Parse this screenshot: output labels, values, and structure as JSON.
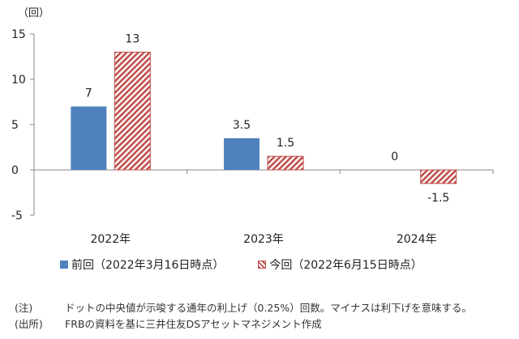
{
  "chart_data": {
    "type": "bar",
    "unit_label": "（回）",
    "categories": [
      "2022年",
      "2023年",
      "2024年"
    ],
    "series": [
      {
        "name": "前回（2022年3月16日時点）",
        "values": [
          7,
          3.5,
          0
        ],
        "value_labels": [
          "7",
          "3.5",
          "0"
        ],
        "color": "#4f81bd",
        "style": "solid"
      },
      {
        "name": "今回（2022年6月15日時点）",
        "values": [
          13,
          1.5,
          -1.5
        ],
        "value_labels": [
          "13",
          "1.5",
          "-1.5"
        ],
        "color": "#c0504d",
        "style": "hatched"
      }
    ],
    "ylim": [
      -5,
      15
    ],
    "yticks": [
      15,
      10,
      5,
      0,
      -5
    ],
    "ytick_labels": [
      "15",
      "10",
      "5",
      "0",
      "-5"
    ],
    "legend_position": "bottom",
    "grid": false
  },
  "notes": [
    {
      "label": "(注)",
      "text": "ドットの中央値が示唆する通年の利上げ（0.25%）回数。マイナスは利下げを意味する。"
    },
    {
      "label": "(出所)",
      "text": "FRBの資料を基に三井住友DSアセットマネジメント作成"
    }
  ]
}
